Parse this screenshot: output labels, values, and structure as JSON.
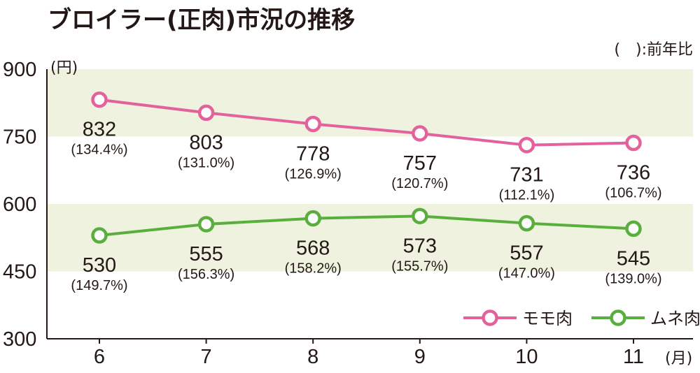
{
  "title": "ブロイラー(正肉)市況の推移",
  "note": "(　):前年比",
  "y_unit": "(円)",
  "x_unit": "(月)",
  "colors": {
    "momo": "#e4629c",
    "mune": "#5aae3d",
    "band": "#eef2de",
    "axis": "#231815"
  },
  "chart_data": {
    "type": "line",
    "title": "ブロイラー(正肉)市況の推移",
    "xlabel": "(月)",
    "ylabel": "(円)",
    "ylim": [
      300,
      900
    ],
    "yticks": [
      300,
      450,
      600,
      750,
      900
    ],
    "categories": [
      "6",
      "7",
      "8",
      "9",
      "10",
      "11"
    ],
    "grid": false,
    "shaded_bands": [
      [
        450,
        600
      ],
      [
        750,
        900
      ]
    ],
    "legend": "bottom-right",
    "series": [
      {
        "name": "モモ肉",
        "color": "#e4629c",
        "values": [
          832,
          803,
          778,
          757,
          731,
          736
        ],
        "labels": [
          "832",
          "803",
          "778",
          "757",
          "731",
          "736"
        ],
        "yoy": [
          "(134.4%)",
          "(131.0%)",
          "(126.9%)",
          "(120.7%)",
          "(112.1%)",
          "(106.7%)"
        ]
      },
      {
        "name": "ムネ肉",
        "color": "#5aae3d",
        "values": [
          530,
          555,
          568,
          573,
          557,
          545
        ],
        "labels": [
          "530",
          "555",
          "568",
          "573",
          "557",
          "545"
        ],
        "yoy": [
          "(149.7%)",
          "(156.3%)",
          "(158.2%)",
          "(155.7%)",
          "(147.0%)",
          "(139.0%)"
        ]
      }
    ]
  }
}
